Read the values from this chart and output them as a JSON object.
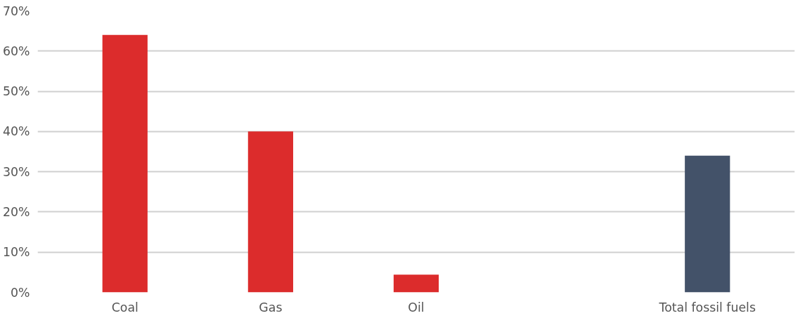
{
  "chart_data": {
    "type": "bar",
    "categories": [
      "Coal",
      "Gas",
      "Oil",
      null,
      "Total fossil fuels"
    ],
    "values": [
      64,
      40,
      4.4,
      null,
      34
    ],
    "colors": [
      "#dc2c2c",
      "#dc2c2c",
      "#dc2c2c",
      "#dc2c2c",
      "#435269"
    ],
    "ylim": [
      0,
      70
    ],
    "yticks": [
      {
        "value": 0,
        "label": "0%"
      },
      {
        "value": 10,
        "label": "10%"
      },
      {
        "value": 20,
        "label": "20%"
      },
      {
        "value": 30,
        "label": "30%"
      },
      {
        "value": 40,
        "label": "40%"
      },
      {
        "value": 50,
        "label": "50%"
      },
      {
        "value": 60,
        "label": "60%"
      },
      {
        "value": 70,
        "label": "70%"
      }
    ],
    "grid": "y"
  }
}
